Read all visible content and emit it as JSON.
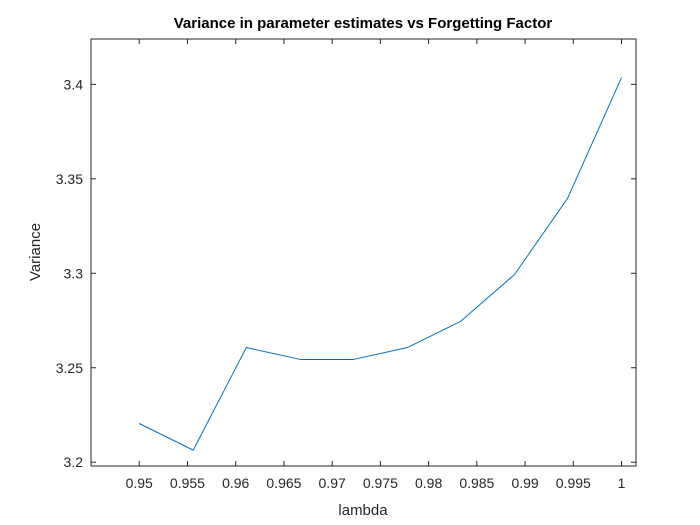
{
  "chart_data": {
    "type": "line",
    "title": "Variance in parameter estimates vs Forgetting Factor",
    "xlabel": "lambda",
    "ylabel": "Variance",
    "xlim": [
      0.945,
      1.0015
    ],
    "ylim": [
      3.198,
      3.424
    ],
    "xticks": [
      0.95,
      0.955,
      0.96,
      0.965,
      0.97,
      0.975,
      0.98,
      0.985,
      0.99,
      0.995,
      1
    ],
    "xtick_labels": [
      "0.95",
      "0.955",
      "0.96",
      "0.965",
      "0.97",
      "0.975",
      "0.98",
      "0.985",
      "0.99",
      "0.995",
      "1"
    ],
    "yticks": [
      3.2,
      3.25,
      3.3,
      3.35,
      3.4
    ],
    "ytick_labels": [
      "3.2",
      "3.25",
      "3.3",
      "3.35",
      "3.4"
    ],
    "grid": false,
    "box": true,
    "series": [
      {
        "color": "#0072BD",
        "x": [
          0.95,
          0.9556,
          0.9611,
          0.9667,
          0.9722,
          0.9778,
          0.9833,
          0.9889,
          0.9944,
          1.0
        ],
        "y": [
          3.2205,
          3.2064,
          3.2607,
          3.2544,
          3.2544,
          3.2607,
          3.2745,
          3.2993,
          3.3396,
          3.4036
        ]
      }
    ]
  }
}
